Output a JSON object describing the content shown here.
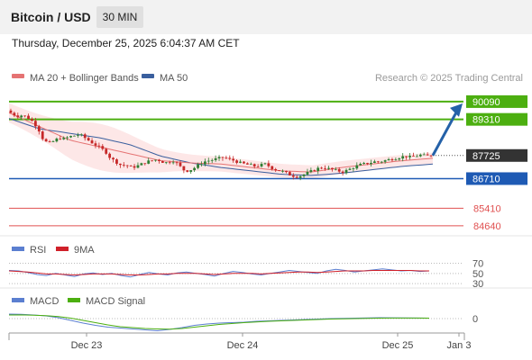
{
  "header": {
    "title": "Bitcoin / USD",
    "timeframe": "30 MIN"
  },
  "date": "Thursday, December 25, 2025 6:04:37 AM CET",
  "copyright": "Research © 2025 Trading Central",
  "legend": {
    "ma20": "MA 20 + Bollinger Bands",
    "ma50": "MA 50"
  },
  "colors": {
    "up": "#2e7d32",
    "down": "#c62828",
    "ma20": "#e57373",
    "ma50": "#3a5f9e",
    "resistance": "#4caf10",
    "support": "#1e5ab4",
    "lower": "#e05050",
    "price": "#333333"
  },
  "chart_data": [
    {
      "type": "candlestick",
      "x_ticks": [
        "Dec 23",
        "Dec 24",
        "Dec 25",
        "Jan 3"
      ],
      "ylim": [
        84200,
        90600
      ],
      "levels": [
        {
          "value": "90090",
          "kind": "resistance"
        },
        {
          "value": "89310",
          "kind": "resistance"
        },
        {
          "value": "87725",
          "kind": "current"
        },
        {
          "value": "86710",
          "kind": "support"
        },
        {
          "value": "85410",
          "kind": "lower"
        },
        {
          "value": "84640",
          "kind": "lower"
        }
      ],
      "close_path": [
        89700,
        89550,
        89450,
        89500,
        89380,
        89200,
        88900,
        88400,
        88250,
        88350,
        88500,
        88450,
        88550,
        88600,
        88650,
        88500,
        88350,
        88200,
        88050,
        87900,
        87600,
        87450,
        87300,
        87300,
        87200,
        87250,
        87350,
        87450,
        87500,
        87550,
        87450,
        87400,
        87500,
        87350,
        87100,
        87050,
        87150,
        87300,
        87450,
        87500,
        87550,
        87600,
        87650,
        87550,
        87500,
        87400,
        87350,
        87300,
        87250,
        87300,
        87350,
        87200,
        87100,
        87050,
        86950,
        86850,
        86800,
        86850,
        86950,
        87050,
        87150,
        87200,
        87150,
        87100,
        87050,
        87000,
        87100,
        87200,
        87300,
        87350,
        87400,
        87450,
        87450,
        87500,
        87550,
        87600,
        87650,
        87700,
        87650,
        87700,
        87750,
        87700,
        87725
      ],
      "ma20_path": [
        89600,
        89000,
        88400,
        88100,
        87800,
        87500,
        87400,
        87350,
        87200,
        87050,
        87000,
        87200,
        87350,
        87500,
        87600
      ],
      "ma50_path": [
        89350,
        88900,
        88700,
        88500,
        88200,
        87700,
        87400,
        87200,
        87050,
        86900,
        86850,
        86950,
        87100,
        87250,
        87350
      ],
      "projection": [
        87725,
        90090
      ]
    },
    {
      "type": "line",
      "legend": [
        "RSI",
        "9MA"
      ],
      "y_ticks": [
        "70",
        "50",
        "30"
      ],
      "ylim": [
        25,
        78
      ],
      "series": [
        {
          "name": "RSI",
          "values": [
            56,
            55,
            52,
            48,
            46,
            50,
            47,
            44,
            49,
            51,
            48,
            50,
            46,
            43,
            48,
            52,
            49,
            47,
            51,
            53,
            50,
            48,
            45,
            50,
            54,
            52,
            49,
            47,
            50,
            53,
            56,
            54,
            52,
            50,
            55,
            58,
            56,
            53,
            55,
            57,
            59,
            57,
            55,
            56,
            54,
            55
          ]
        },
        {
          "name": "9MA",
          "values": [
            55,
            54,
            53,
            51,
            49,
            49,
            48,
            47,
            48,
            49,
            49,
            49,
            48,
            47,
            47,
            48,
            49,
            49,
            50,
            50,
            50,
            49,
            48,
            49,
            50,
            50,
            50,
            49,
            50,
            51,
            52,
            53,
            53,
            52,
            53,
            54,
            55,
            55,
            55,
            56,
            56,
            56,
            56,
            56,
            55,
            55
          ]
        }
      ]
    },
    {
      "type": "line",
      "legend": [
        "MACD",
        "MACD Signal"
      ],
      "y_ticks": [
        "0"
      ],
      "ylim": [
        -300,
        180
      ],
      "series": [
        {
          "name": "MACD",
          "values": [
            100,
            95,
            80,
            60,
            20,
            -40,
            -100,
            -150,
            -190,
            -210,
            -230,
            -250,
            -270,
            -240,
            -200,
            -150,
            -120,
            -100,
            -90,
            -80,
            -60,
            -50,
            -40,
            -30,
            -20,
            -10,
            0,
            5,
            10,
            15,
            20,
            18,
            15,
            12,
            10
          ]
        },
        {
          "name": "MACD Signal",
          "values": [
            80,
            82,
            75,
            65,
            45,
            10,
            -40,
            -90,
            -140,
            -180,
            -200,
            -220,
            -230,
            -235,
            -220,
            -190,
            -160,
            -130,
            -110,
            -90,
            -75,
            -60,
            -50,
            -40,
            -30,
            -20,
            -10,
            -5,
            0,
            5,
            10,
            12,
            12,
            11,
            10
          ]
        }
      ]
    }
  ]
}
